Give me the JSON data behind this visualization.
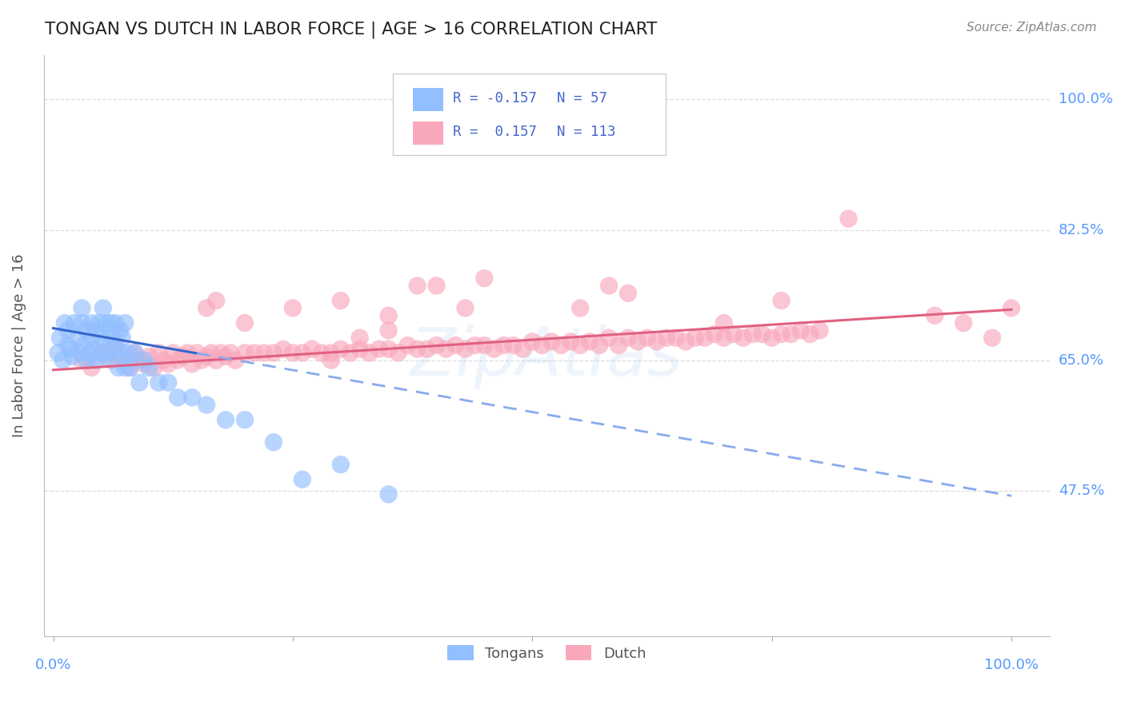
{
  "title": "TONGAN VS DUTCH IN LABOR FORCE | AGE > 16 CORRELATION CHART",
  "source": "Source: ZipAtlas.com",
  "ylabel": "In Labor Force | Age > 16",
  "yticks": [
    0.475,
    0.65,
    0.825,
    1.0
  ],
  "ytick_labels": [
    "47.5%",
    "65.0%",
    "82.5%",
    "100.0%"
  ],
  "xlim": [
    -0.01,
    1.04
  ],
  "ylim": [
    0.28,
    1.06
  ],
  "tongans_R": -0.157,
  "tongans_N": 57,
  "dutch_R": 0.157,
  "dutch_N": 113,
  "tongans_color": "#92bfff",
  "dutch_color": "#f9a8bc",
  "tongans_line_color": "#3366cc",
  "tongans_dash_color": "#88aaee",
  "dutch_line_color": "#e06080",
  "tongans_scatter_x": [
    0.005,
    0.007,
    0.01,
    0.012,
    0.015,
    0.015,
    0.018,
    0.02,
    0.022,
    0.025,
    0.028,
    0.03,
    0.03,
    0.032,
    0.035,
    0.035,
    0.038,
    0.04,
    0.04,
    0.042,
    0.045,
    0.045,
    0.048,
    0.05,
    0.05,
    0.052,
    0.055,
    0.055,
    0.058,
    0.06,
    0.06,
    0.062,
    0.065,
    0.065,
    0.068,
    0.07,
    0.07,
    0.072,
    0.075,
    0.075,
    0.078,
    0.08,
    0.085,
    0.09,
    0.095,
    0.1,
    0.11,
    0.12,
    0.13,
    0.145,
    0.16,
    0.18,
    0.2,
    0.23,
    0.26,
    0.3,
    0.35
  ],
  "tongans_scatter_y": [
    0.66,
    0.68,
    0.65,
    0.7,
    0.67,
    0.69,
    0.665,
    0.655,
    0.7,
    0.68,
    0.66,
    0.7,
    0.72,
    0.67,
    0.69,
    0.65,
    0.66,
    0.68,
    0.7,
    0.665,
    0.69,
    0.65,
    0.7,
    0.66,
    0.68,
    0.72,
    0.655,
    0.7,
    0.68,
    0.7,
    0.66,
    0.68,
    0.7,
    0.665,
    0.64,
    0.69,
    0.66,
    0.68,
    0.7,
    0.64,
    0.66,
    0.64,
    0.66,
    0.62,
    0.65,
    0.64,
    0.62,
    0.62,
    0.6,
    0.6,
    0.59,
    0.57,
    0.57,
    0.54,
    0.49,
    0.51,
    0.47
  ],
  "dutch_scatter_x": [
    0.03,
    0.04,
    0.05,
    0.06,
    0.065,
    0.07,
    0.08,
    0.085,
    0.09,
    0.095,
    0.1,
    0.105,
    0.11,
    0.115,
    0.12,
    0.125,
    0.13,
    0.135,
    0.14,
    0.145,
    0.15,
    0.155,
    0.16,
    0.165,
    0.17,
    0.175,
    0.18,
    0.185,
    0.19,
    0.2,
    0.21,
    0.22,
    0.23,
    0.24,
    0.25,
    0.26,
    0.27,
    0.28,
    0.29,
    0.3,
    0.31,
    0.32,
    0.33,
    0.34,
    0.35,
    0.36,
    0.37,
    0.38,
    0.39,
    0.4,
    0.41,
    0.42,
    0.43,
    0.44,
    0.45,
    0.46,
    0.47,
    0.48,
    0.49,
    0.5,
    0.51,
    0.52,
    0.53,
    0.54,
    0.55,
    0.56,
    0.57,
    0.58,
    0.59,
    0.6,
    0.61,
    0.62,
    0.63,
    0.64,
    0.65,
    0.66,
    0.67,
    0.68,
    0.69,
    0.7,
    0.71,
    0.72,
    0.73,
    0.74,
    0.75,
    0.76,
    0.77,
    0.78,
    0.79,
    0.8,
    0.3,
    0.35,
    0.4,
    0.6,
    0.7,
    0.32,
    0.43,
    0.29,
    0.45,
    0.35,
    0.2,
    0.25,
    0.38,
    0.92,
    0.95,
    0.98,
    1.0,
    0.16,
    0.17,
    0.55,
    0.58,
    0.76,
    0.83
  ],
  "dutch_scatter_y": [
    0.65,
    0.64,
    0.66,
    0.65,
    0.67,
    0.655,
    0.64,
    0.66,
    0.65,
    0.645,
    0.655,
    0.64,
    0.66,
    0.65,
    0.645,
    0.66,
    0.65,
    0.655,
    0.66,
    0.645,
    0.66,
    0.65,
    0.655,
    0.66,
    0.65,
    0.66,
    0.655,
    0.66,
    0.65,
    0.66,
    0.66,
    0.66,
    0.66,
    0.665,
    0.66,
    0.66,
    0.665,
    0.66,
    0.66,
    0.665,
    0.66,
    0.665,
    0.66,
    0.665,
    0.665,
    0.66,
    0.67,
    0.665,
    0.665,
    0.67,
    0.665,
    0.67,
    0.665,
    0.67,
    0.67,
    0.665,
    0.67,
    0.67,
    0.665,
    0.675,
    0.67,
    0.675,
    0.67,
    0.675,
    0.67,
    0.675,
    0.67,
    0.68,
    0.67,
    0.68,
    0.675,
    0.68,
    0.675,
    0.68,
    0.68,
    0.675,
    0.68,
    0.68,
    0.685,
    0.68,
    0.685,
    0.68,
    0.685,
    0.685,
    0.68,
    0.685,
    0.685,
    0.69,
    0.685,
    0.69,
    0.73,
    0.71,
    0.75,
    0.74,
    0.7,
    0.68,
    0.72,
    0.65,
    0.76,
    0.69,
    0.7,
    0.72,
    0.75,
    0.71,
    0.7,
    0.68,
    0.72,
    0.72,
    0.73,
    0.72,
    0.75,
    0.73,
    0.84
  ],
  "tongans_trend_x0": 0.0,
  "tongans_trend_x_cross": 0.15,
  "tongans_trend_x1": 1.0,
  "tongans_trend_y0": 0.693,
  "tongans_trend_y1": 0.468,
  "dutch_trend_x0": 0.0,
  "dutch_trend_x1": 1.0,
  "dutch_trend_y0": 0.637,
  "dutch_trend_y1": 0.718,
  "grid_color": "#dddddd",
  "background_color": "#ffffff",
  "tick_label_color": "#5599ff",
  "title_color": "#222222"
}
